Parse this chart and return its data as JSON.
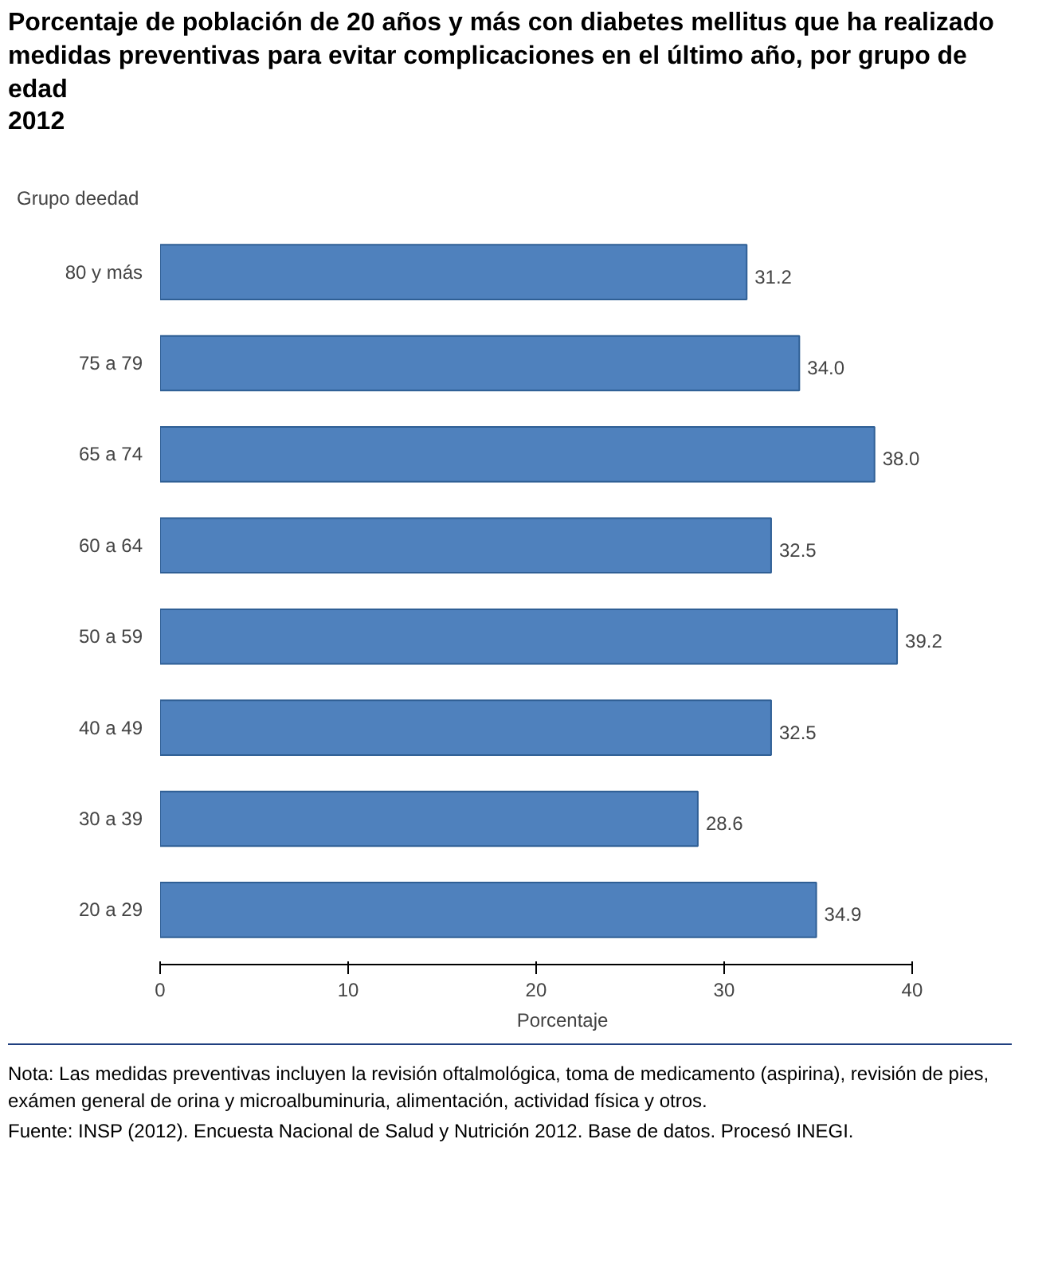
{
  "chart_data": {
    "type": "bar",
    "orientation": "horizontal",
    "title": "Porcentaje de población de 20 años y más con diabetes mellitus que ha realizado medidas preventivas para evitar complicaciones en el último año, por grupo de edad",
    "subtitle": "2012",
    "ylabel": "Grupo deedad",
    "xlabel": "Porcentaje",
    "categories": [
      "80 y más",
      "75 a 79",
      "65 a 74",
      "60 a 64",
      "50 a 59",
      "40 a 49",
      "30 a 39",
      "20 a 29"
    ],
    "values": [
      31.2,
      34.0,
      38.0,
      32.5,
      39.2,
      32.5,
      28.6,
      34.9
    ],
    "value_labels": [
      "31.2",
      "34.0",
      "38.0",
      "32.5",
      "39.2",
      "32.5",
      "28.6",
      "34.9"
    ],
    "color": "#4f81bd",
    "xlim": [
      0,
      40
    ],
    "xticks": [
      0,
      10,
      20,
      30,
      40
    ],
    "grid": false,
    "annotations": [
      "Nota: Las medidas preventivas incluyen la revisión oftalmológica, toma de medicamento (aspirina), revisión de pies, exámen general de orina y microalbuminuria, alimentación, actividad física y otros.",
      "Fuente: INSP (2012). Encuesta Nacional de Salud y Nutrición 2012. Base de datos. Procesó INEGI."
    ]
  }
}
